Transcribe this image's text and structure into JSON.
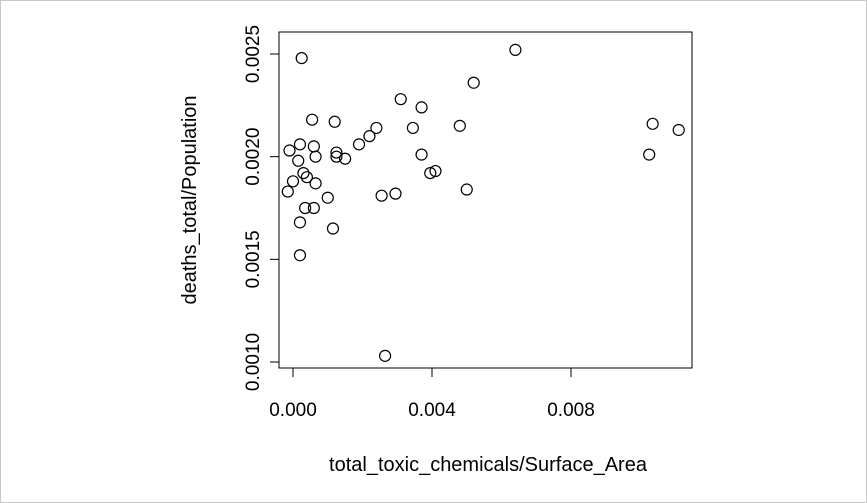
{
  "chart_data": {
    "type": "scatter",
    "title": "",
    "xlabel": "total_toxic_chemicals/Surface_Area",
    "ylabel": "deaths_total/Population",
    "xlim": [
      -0.0002,
      0.0115
    ],
    "ylim": [
      0.00097,
      0.00255
    ],
    "x_ticks": [
      0.0,
      0.004,
      0.008
    ],
    "x_tick_labels": [
      "0.000",
      "0.004",
      "0.008"
    ],
    "y_ticks": [
      0.001,
      0.0015,
      0.002,
      0.0025
    ],
    "y_tick_labels": [
      "0.0010",
      "0.0015",
      "0.0020",
      "0.0025"
    ],
    "grid": false,
    "legend": null,
    "marker": "open-circle",
    "points": [
      {
        "x": 0.00025,
        "y": 0.00248
      },
      {
        "x": 0.0064,
        "y": 0.00252
      },
      {
        "x": 0.0052,
        "y": 0.00236
      },
      {
        "x": 0.0031,
        "y": 0.00228
      },
      {
        "x": 0.0037,
        "y": 0.00224
      },
      {
        "x": 0.00055,
        "y": 0.00218
      },
      {
        "x": 0.0012,
        "y": 0.00217
      },
      {
        "x": 0.0048,
        "y": 0.00215
      },
      {
        "x": 0.00345,
        "y": 0.00214
      },
      {
        "x": 0.0024,
        "y": 0.00214
      },
      {
        "x": 0.01035,
        "y": 0.00216
      },
      {
        "x": 0.0111,
        "y": 0.00213
      },
      {
        "x": 0.0022,
        "y": 0.0021
      },
      {
        "x": 0.0019,
        "y": 0.00206
      },
      {
        "x": 0.0002,
        "y": 0.00206
      },
      {
        "x": 0.0006,
        "y": 0.00205
      },
      {
        "x": -0.0001,
        "y": 0.00203
      },
      {
        "x": 0.00125,
        "y": 0.00202
      },
      {
        "x": 0.00125,
        "y": 0.002
      },
      {
        "x": 0.00065,
        "y": 0.002
      },
      {
        "x": 0.0037,
        "y": 0.00201
      },
      {
        "x": 0.01025,
        "y": 0.00201
      },
      {
        "x": 0.0015,
        "y": 0.00199
      },
      {
        "x": 0.00015,
        "y": 0.00198
      },
      {
        "x": 0.0041,
        "y": 0.00193
      },
      {
        "x": 0.00395,
        "y": 0.00192
      },
      {
        "x": 0.0003,
        "y": 0.00192
      },
      {
        "x": 0.0004,
        "y": 0.0019
      },
      {
        "x": 0.0,
        "y": 0.00188
      },
      {
        "x": 0.00065,
        "y": 0.00187
      },
      {
        "x": -0.00015,
        "y": 0.00183
      },
      {
        "x": 0.005,
        "y": 0.00184
      },
      {
        "x": 0.00295,
        "y": 0.00182
      },
      {
        "x": 0.00255,
        "y": 0.00181
      },
      {
        "x": 0.001,
        "y": 0.0018
      },
      {
        "x": 0.00035,
        "y": 0.00175
      },
      {
        "x": 0.0006,
        "y": 0.00175
      },
      {
        "x": 0.0002,
        "y": 0.00168
      },
      {
        "x": 0.00115,
        "y": 0.00165
      },
      {
        "x": 0.0002,
        "y": 0.00152
      },
      {
        "x": 0.00265,
        "y": 0.00103
      }
    ]
  }
}
